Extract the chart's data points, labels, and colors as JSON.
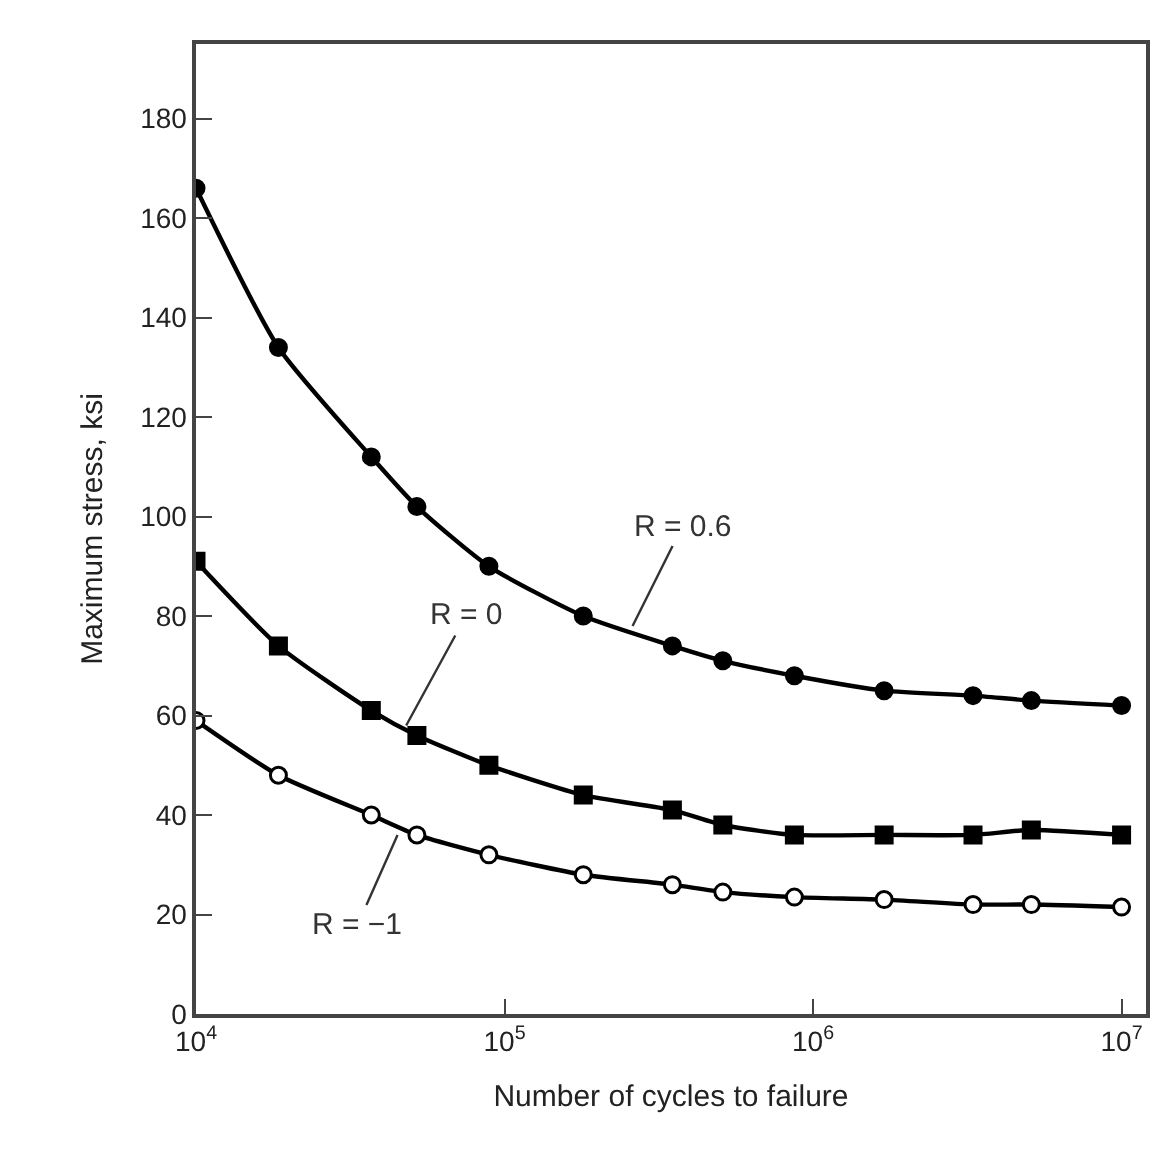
{
  "chart_data": {
    "type": "line",
    "xlabel": "Number of cycles to failure",
    "ylabel": "Maximum stress, ksi",
    "log": "x",
    "x": [
      10000,
      18500,
      37000,
      52000,
      89000,
      180000,
      350000,
      510000,
      870000,
      1700000,
      3300000,
      5100000,
      10000000
    ],
    "series": [
      {
        "color": "#000000",
        "marker": "circle",
        "values": [
          166,
          134,
          112,
          102,
          90,
          80,
          74,
          71,
          68,
          65,
          64,
          63,
          62
        ]
      },
      {
        "color": "#000000",
        "marker": "square",
        "values": [
          91,
          74,
          61,
          56,
          50,
          44,
          41,
          38,
          36,
          36,
          36,
          37,
          36
        ]
      },
      {
        "color": "#000000",
        "marker": "circle-open",
        "values": [
          59,
          48,
          40,
          36,
          32,
          28,
          26,
          24.5,
          23.5,
          23,
          22,
          22,
          21.5
        ]
      }
    ],
    "annotations": [
      {
        "text": "R = 0.6",
        "x": 260000,
        "y": 78
      },
      {
        "text": "R = 0",
        "x": 48000,
        "y": 58
      },
      {
        "text": "R = −1",
        "x": 45000,
        "y": 36
      }
    ],
    "xlim": [
      10000,
      12000000
    ],
    "ylim": [
      0,
      195
    ],
    "xticks": [
      {
        "value": 10000,
        "label": "10$^{4}$"
      },
      {
        "value": 100000,
        "label": "10$^{5}$"
      },
      {
        "value": 1000000,
        "label": "10$^{6}$"
      },
      {
        "value": 10000000,
        "label": "10$^{7}$"
      }
    ],
    "yticks": [
      0,
      20,
      40,
      60,
      80,
      100,
      120,
      140,
      160,
      180
    ],
    "line_style": "solid"
  }
}
